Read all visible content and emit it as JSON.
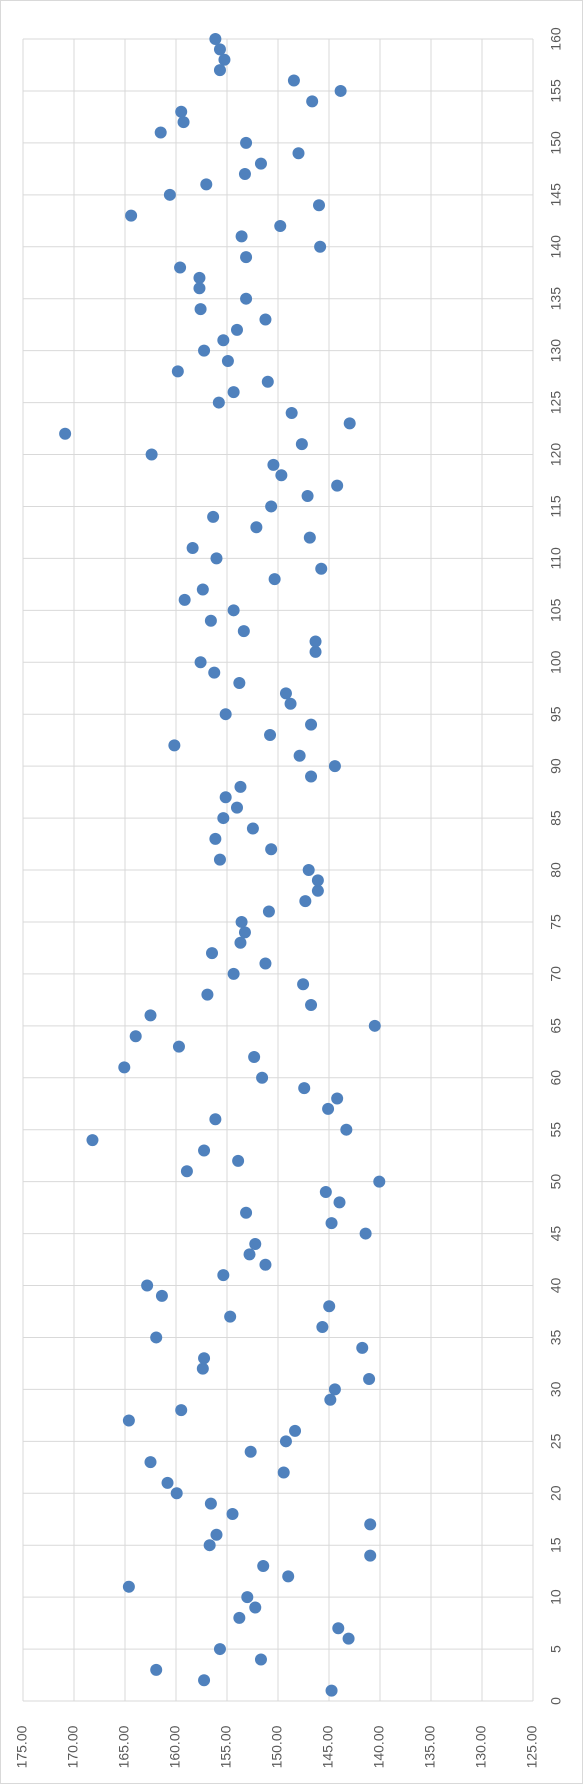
{
  "chart_data": {
    "type": "scatter",
    "rotated": true,
    "grid": true,
    "color": "#4f81bd",
    "x": [
      1,
      2,
      3,
      4,
      5,
      6,
      7,
      8,
      9,
      10,
      11,
      12,
      13,
      14,
      15,
      16,
      17,
      18,
      19,
      20,
      21,
      22,
      23,
      24,
      25,
      26,
      27,
      28,
      29,
      30,
      31,
      32,
      33,
      34,
      35,
      36,
      37,
      38,
      39,
      40,
      41,
      42,
      43,
      44,
      45,
      46,
      47,
      48,
      49,
      50,
      51,
      52,
      53,
      54,
      55,
      56,
      57,
      58,
      59,
      60,
      61,
      62,
      63,
      64,
      65,
      66,
      67,
      68,
      69,
      70,
      71,
      72,
      73,
      74,
      75,
      76,
      77,
      78,
      79,
      80,
      81,
      82,
      83,
      84,
      85,
      86,
      87,
      88,
      89,
      90,
      91,
      92,
      93,
      94,
      95,
      96,
      97,
      98,
      99,
      100,
      101,
      102,
      103,
      104,
      105,
      106,
      107,
      108,
      109,
      110,
      111,
      112,
      113,
      114,
      115,
      116,
      117,
      118,
      119,
      120,
      121,
      122,
      123,
      124,
      125,
      126,
      127,
      128,
      129,
      130,
      131,
      132,
      133,
      134,
      135,
      136,
      137,
      138,
      139,
      140,
      141,
      142,
      143,
      144,
      145,
      146,
      147,
      148,
      149,
      150,
      151,
      152,
      153,
      154,
      155,
      156,
      157,
      158,
      159,
      160
    ],
    "values": [
      144.75,
      157.25,
      161.94,
      151.67,
      155.69,
      143.08,
      144.09,
      153.79,
      152.23,
      153.01,
      164.62,
      149.0,
      151.45,
      140.96,
      156.7,
      156.03,
      140.96,
      154.46,
      156.58,
      159.93,
      160.83,
      149.44,
      162.5,
      152.68,
      149.22,
      148.33,
      164.62,
      159.49,
      144.87,
      144.42,
      141.07,
      157.37,
      157.25,
      141.74,
      161.94,
      145.65,
      154.69,
      144.98,
      161.38,
      162.83,
      155.36,
      151.23,
      152.79,
      152.23,
      141.41,
      144.75,
      153.13,
      143.97,
      145.31,
      140.07,
      158.93,
      153.91,
      157.25,
      168.19,
      143.3,
      156.14,
      145.09,
      144.2,
      147.43,
      151.56,
      165.07,
      152.34,
      159.71,
      163.95,
      140.51,
      162.5,
      146.76,
      156.92,
      147.54,
      154.35,
      151.23,
      156.47,
      153.68,
      153.24,
      153.57,
      150.89,
      147.32,
      146.09,
      146.09,
      146.99,
      155.69,
      150.67,
      156.14,
      152.46,
      155.36,
      154.02,
      155.13,
      153.68,
      146.76,
      144.42,
      147.88,
      160.16,
      150.78,
      146.76,
      155.13,
      148.77,
      149.22,
      153.79,
      156.25,
      157.59,
      146.32,
      146.32,
      153.35,
      156.58,
      154.35,
      159.15,
      157.37,
      150.33,
      145.76,
      156.03,
      158.37,
      146.88,
      152.12,
      156.36,
      150.67,
      147.1,
      144.2,
      149.67,
      150.45,
      162.39,
      147.66,
      170.87,
      142.97,
      148.66,
      155.8,
      154.35,
      151.0,
      159.82,
      154.91,
      157.25,
      155.36,
      154.02,
      151.23,
      157.59,
      153.13,
      157.7,
      157.7,
      159.6,
      153.13,
      145.87,
      153.57,
      149.78,
      164.4,
      145.98,
      160.6,
      157.03,
      153.24,
      151.67,
      147.99,
      153.13,
      161.5,
      159.26,
      159.49,
      146.65,
      143.86,
      148.44,
      155.69,
      155.25,
      155.69,
      156.14
    ],
    "xlim": [
      0,
      160
    ],
    "xticks": [
      0,
      5,
      10,
      15,
      20,
      25,
      30,
      35,
      40,
      45,
      50,
      55,
      60,
      65,
      70,
      75,
      80,
      85,
      90,
      95,
      100,
      105,
      110,
      115,
      120,
      125,
      130,
      135,
      140,
      145,
      150,
      155,
      160
    ],
    "ylim": [
      175,
      125
    ],
    "yticks": [
      {
        "value": 175,
        "label": "175.00"
      },
      {
        "value": 170,
        "label": "170.00"
      },
      {
        "value": 165,
        "label": "165.00"
      },
      {
        "value": 160,
        "label": "160.00"
      },
      {
        "value": 155,
        "label": "155.00"
      },
      {
        "value": 150,
        "label": "150.00"
      },
      {
        "value": 145,
        "label": "145.00"
      },
      {
        "value": 140,
        "label": "140.00"
      },
      {
        "value": 135,
        "label": "135.00"
      },
      {
        "value": 130,
        "label": "130.00"
      },
      {
        "value": 125,
        "label": "125.00"
      }
    ]
  }
}
